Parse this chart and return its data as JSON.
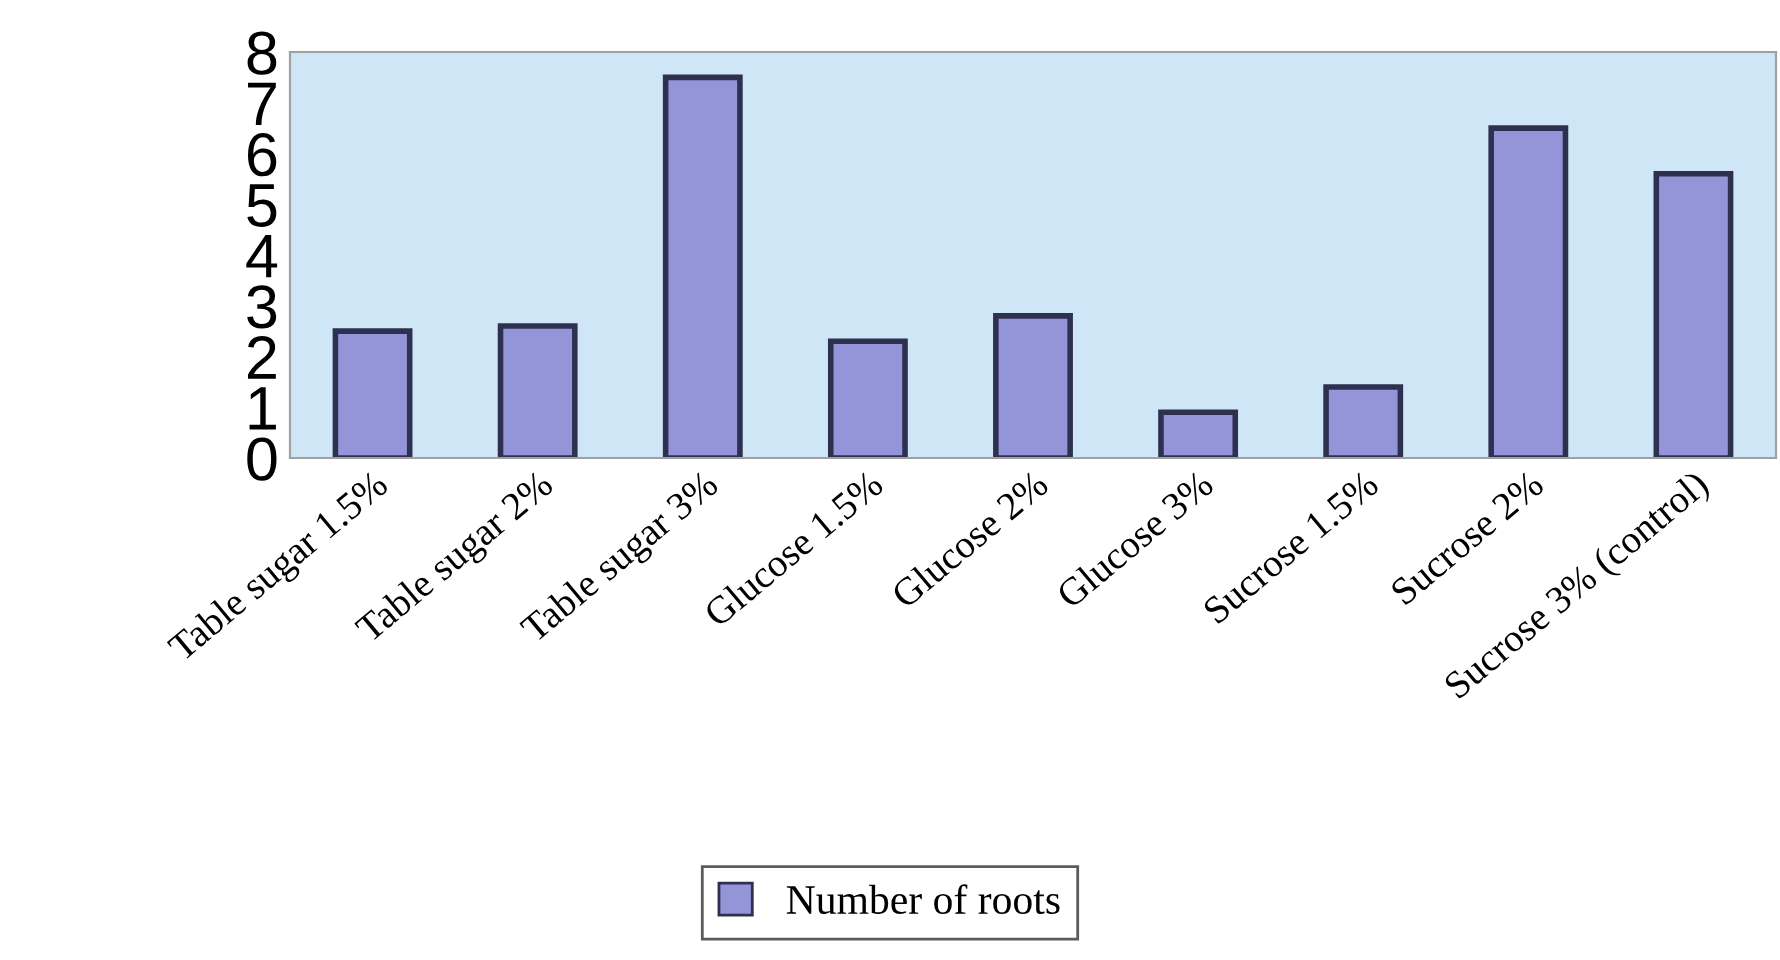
{
  "chart_data": {
    "type": "bar",
    "categories": [
      "Table sugar 1.5%",
      "Table sugar 2%",
      "Table sugar 3%",
      "Glucose 1.5%",
      "Glucose 2%",
      "Glucose 3%",
      "Sucrose 1.5%",
      "Sucrose 2%",
      "Sucrose 3% (control)"
    ],
    "series": [
      {
        "name": "Number of roots",
        "color": "#9494d8",
        "values": [
          2.5,
          2.6,
          7.5,
          2.3,
          2.8,
          0.9,
          1.4,
          6.5,
          5.6
        ]
      }
    ],
    "ylim": [
      0,
      8
    ],
    "yticks": [
      0,
      1,
      2,
      3,
      4,
      5,
      6,
      7,
      8
    ],
    "grid": false,
    "legend": "bottom"
  }
}
